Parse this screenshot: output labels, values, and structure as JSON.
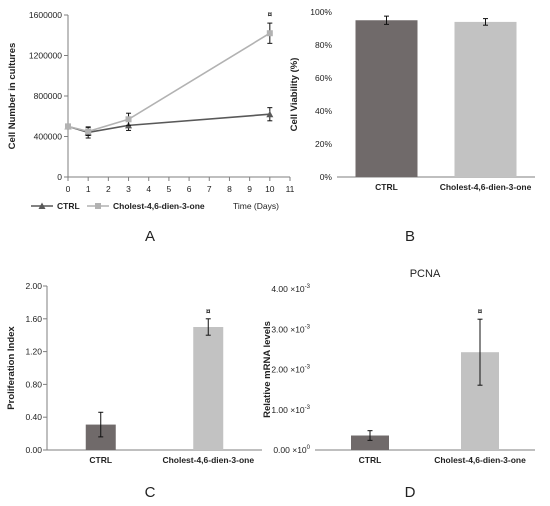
{
  "panels": {
    "A": "A",
    "B": "B",
    "C": "C",
    "D": "D"
  },
  "significance_marker": "¤",
  "colors": {
    "dark": "#706a6a",
    "light": "#c2c2c2",
    "line_dark": "#595959",
    "line_light": "#b2b2b2"
  },
  "chart_data": [
    {
      "id": "A",
      "type": "line",
      "title": "",
      "xlabel": "Time (Days)",
      "ylabel": "Cell Number in cultures",
      "xlim": [
        0,
        11
      ],
      "ylim": [
        0,
        1600000
      ],
      "xticks": [
        "0",
        "1",
        "2",
        "3",
        "4",
        "5",
        "6",
        "7",
        "8",
        "9",
        "10",
        "11"
      ],
      "yticks": [
        "0",
        "400000",
        "800000",
        "1200000",
        "1600000"
      ],
      "legend_position": "bottom",
      "series": [
        {
          "name": "CTRL",
          "color": "#595959",
          "marker": "triangle",
          "x": [
            0,
            1,
            3,
            10
          ],
          "y": [
            500000,
            440000,
            510000,
            620000
          ],
          "err": [
            20000,
            55000,
            50000,
            65000
          ]
        },
        {
          "name": "Cholest-4,6-dien-3-one",
          "color": "#b2b2b2",
          "marker": "square",
          "x": [
            0,
            1,
            3,
            10
          ],
          "y": [
            500000,
            450000,
            570000,
            1420000
          ],
          "err": [
            20000,
            40000,
            60000,
            100000
          ]
        }
      ],
      "annotations": [
        {
          "x": 10,
          "text": "¤"
        }
      ]
    },
    {
      "id": "B",
      "type": "bar",
      "title": "",
      "xlabel": "",
      "ylabel": "Cell Viability (%)",
      "categories": [
        "CTRL",
        "Cholest-4,6-dien-3-one"
      ],
      "values": [
        0.95,
        0.94
      ],
      "errors": [
        0.025,
        0.02
      ],
      "ylim": [
        0,
        1
      ],
      "yticks": [
        "0%",
        "20%",
        "40%",
        "60%",
        "80%",
        "100%"
      ],
      "colors": [
        "#706a6a",
        "#c2c2c2"
      ]
    },
    {
      "id": "C",
      "type": "bar",
      "title": "",
      "xlabel": "",
      "ylabel": "Proliferation Index",
      "categories": [
        "CTRL",
        "Cholest-4,6-dien-3-one"
      ],
      "values": [
        0.31,
        1.5
      ],
      "errors": [
        0.15,
        0.1
      ],
      "ylim": [
        0,
        2
      ],
      "yticks": [
        "0.00",
        "0.40",
        "0.80",
        "1.20",
        "1.60",
        "2.00"
      ],
      "colors": [
        "#706a6a",
        "#c2c2c2"
      ],
      "annotations": [
        {
          "category": 1,
          "text": "¤"
        }
      ]
    },
    {
      "id": "D",
      "type": "bar",
      "title": "PCNA",
      "xlabel": "",
      "ylabel": "Relative mRNA levels",
      "categories": [
        "CTRL",
        "Cholest-4,6-dien-3-one"
      ],
      "values": [
        0.00036,
        0.00243
      ],
      "errors": [
        0.00012,
        0.00082
      ],
      "ylim": [
        0,
        0.004
      ],
      "yticks": [
        {
          "mantissa": "0.00",
          "exp": "0"
        },
        {
          "mantissa": "1.00",
          "exp": "-3"
        },
        {
          "mantissa": "2.00",
          "exp": "-3"
        },
        {
          "mantissa": "3.00",
          "exp": "-3"
        },
        {
          "mantissa": "4.00",
          "exp": "-3"
        }
      ],
      "colors": [
        "#706a6a",
        "#c2c2c2"
      ],
      "annotations": [
        {
          "category": 1,
          "text": "¤"
        }
      ]
    }
  ]
}
